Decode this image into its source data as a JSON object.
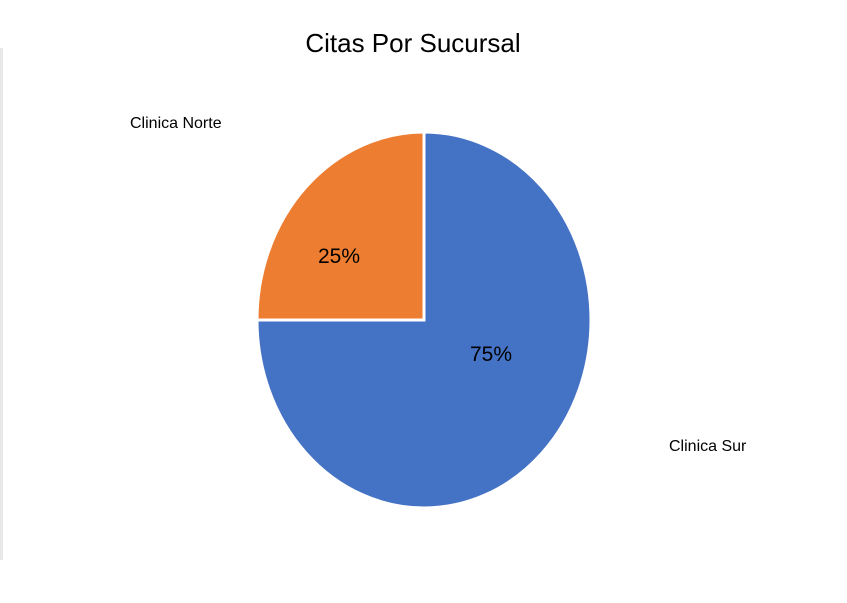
{
  "chart_data": {
    "type": "pie",
    "title": "Citas Por Sucursal",
    "categories": [
      "Clinica Sur",
      "Clinica Norte"
    ],
    "values": [
      75,
      25
    ],
    "data_labels": [
      "75%",
      "25%"
    ],
    "colors": [
      "#4472C4",
      "#ED7D31"
    ],
    "legend": "none"
  }
}
